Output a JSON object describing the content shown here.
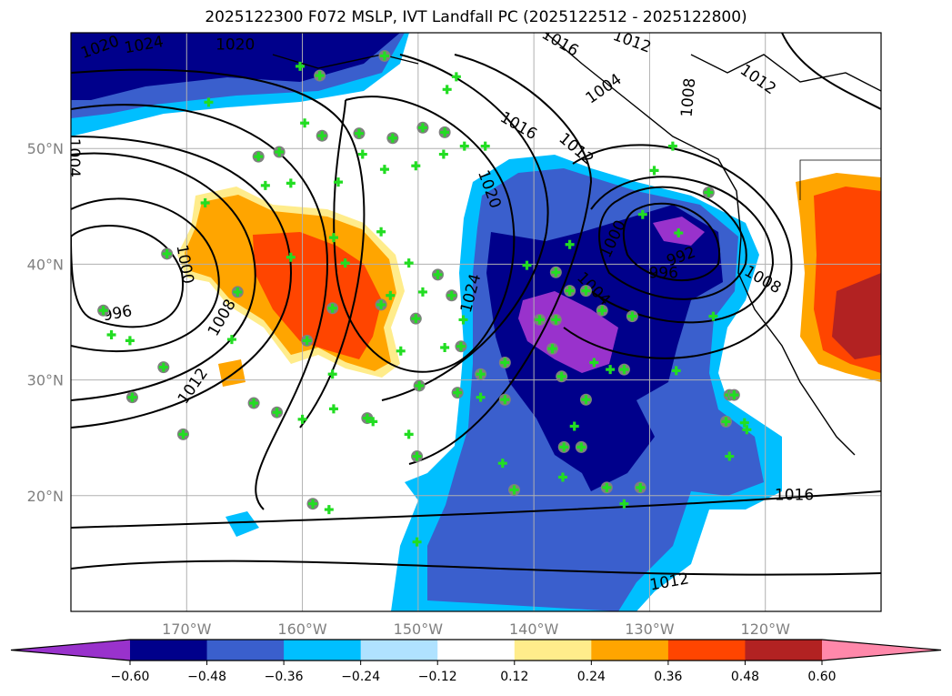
{
  "title": "2025122300 F072 MSLP, IVT Landfall PC (2025122512 - 2025122800)",
  "map": {
    "lon_range": [
      -180,
      -110
    ],
    "lat_range": [
      10,
      60
    ],
    "lon_ticks": [
      {
        "v": -170,
        "label": "170°W"
      },
      {
        "v": -160,
        "label": "160°W"
      },
      {
        "v": -150,
        "label": "150°W"
      },
      {
        "v": -140,
        "label": "140°W"
      },
      {
        "v": -130,
        "label": "130°W"
      },
      {
        "v": -120,
        "label": "120°W"
      }
    ],
    "lat_ticks": [
      {
        "v": 50,
        "label": "50°N"
      },
      {
        "v": 40,
        "label": "40°N"
      },
      {
        "v": 30,
        "label": "30°N"
      },
      {
        "v": 20,
        "label": "20°N"
      }
    ],
    "contour_labels": [
      {
        "t": "1020",
        "lon": -177.5,
        "lat": 58.8,
        "rot": -20
      },
      {
        "t": "1024",
        "lon": -173.7,
        "lat": 59,
        "rot": -10
      },
      {
        "t": "1020",
        "lon": -165.8,
        "lat": 59,
        "rot": 0
      },
      {
        "t": "1004",
        "lon": -179.7,
        "lat": 49.2,
        "rot": 90
      },
      {
        "t": "1000",
        "lon": -170.1,
        "lat": 40,
        "rot": 80
      },
      {
        "t": "996",
        "lon": -176,
        "lat": 35.8,
        "rot": -10
      },
      {
        "t": "1008",
        "lon": -167,
        "lat": 35.4,
        "rot": -60
      },
      {
        "t": "1012",
        "lon": -169.5,
        "lat": 29.5,
        "rot": -55
      },
      {
        "t": "1016",
        "lon": -141.3,
        "lat": 52,
        "rot": 30
      },
      {
        "t": "1012",
        "lon": -136.3,
        "lat": 50,
        "rot": 40
      },
      {
        "t": "1020",
        "lon": -143.8,
        "lat": 46.5,
        "rot": 70
      },
      {
        "t": "1024",
        "lon": -145.5,
        "lat": 37.5,
        "rot": -75
      },
      {
        "t": "1000",
        "lon": -133.2,
        "lat": 42.2,
        "rot": -65
      },
      {
        "t": "996",
        "lon": -128.8,
        "lat": 39.3,
        "rot": 0
      },
      {
        "t": "992",
        "lon": -127.3,
        "lat": 40.7,
        "rot": -20
      },
      {
        "t": "1004",
        "lon": -134.8,
        "lat": 37.9,
        "rot": 45
      },
      {
        "t": "1008",
        "lon": -120.2,
        "lat": 38.7,
        "rot": 30
      },
      {
        "t": "1008",
        "lon": -126.7,
        "lat": 54.4,
        "rot": -85
      },
      {
        "t": "1004",
        "lon": -134,
        "lat": 55.2,
        "rot": -35
      },
      {
        "t": "1016",
        "lon": -137.7,
        "lat": 59.2,
        "rot": 30
      },
      {
        "t": "1012",
        "lon": -131.5,
        "lat": 59.3,
        "rot": 20
      },
      {
        "t": "1012",
        "lon": -120.6,
        "lat": 56,
        "rot": 35
      },
      {
        "t": "1016",
        "lon": -117.5,
        "lat": 20.1,
        "rot": 0
      },
      {
        "t": "1012",
        "lon": -128.3,
        "lat": 12.6,
        "rot": -10
      }
    ],
    "points": [
      [
        -160.2,
        57.1,
        0
      ],
      [
        -158.5,
        56.3,
        1
      ],
      [
        -152.9,
        58.0,
        1
      ],
      [
        -146.7,
        56.2,
        0
      ],
      [
        -147.5,
        55.1,
        0
      ],
      [
        -159.8,
        52.2,
        0
      ],
      [
        -163.8,
        49.3,
        1
      ],
      [
        -162,
        49.7,
        1
      ],
      [
        -158.3,
        51.1,
        1
      ],
      [
        -155.1,
        51.3,
        1
      ],
      [
        -152.2,
        50.9,
        1
      ],
      [
        -149.6,
        51.8,
        1
      ],
      [
        -147.7,
        51.4,
        1
      ],
      [
        -146,
        50.2,
        0
      ],
      [
        -144.2,
        50.2,
        0
      ],
      [
        -150.2,
        48.5,
        0
      ],
      [
        -152.9,
        48.2,
        0
      ],
      [
        -156.9,
        47.1,
        0
      ],
      [
        -163.2,
        46.8,
        0
      ],
      [
        -168.4,
        45.3,
        0
      ],
      [
        -171.7,
        40.9,
        1
      ],
      [
        -177.2,
        36,
        1
      ],
      [
        -176.5,
        33.9,
        0
      ],
      [
        -174.9,
        33.4,
        0
      ],
      [
        -172,
        31.1,
        1
      ],
      [
        -174.7,
        28.5,
        1
      ],
      [
        -170.3,
        25.3,
        1
      ],
      [
        -164.2,
        28,
        1
      ],
      [
        -162.2,
        27.2,
        1
      ],
      [
        -160,
        26.6,
        0
      ],
      [
        -159.1,
        19.3,
        1
      ],
      [
        -157.7,
        18.8,
        0
      ],
      [
        -154.4,
        26.7,
        1
      ],
      [
        -150.8,
        25.3,
        0
      ],
      [
        -150.1,
        23.4,
        1
      ],
      [
        -150.1,
        16,
        0
      ],
      [
        -149.9,
        29.5,
        1
      ],
      [
        -150.2,
        35.3,
        1
      ],
      [
        -149.6,
        37.6,
        0
      ],
      [
        -148.3,
        39.1,
        1
      ],
      [
        -147.1,
        37.3,
        1
      ],
      [
        -146.1,
        35.2,
        0
      ],
      [
        -146.3,
        32.9,
        1
      ],
      [
        -147.7,
        32.8,
        0
      ],
      [
        -146.6,
        28.9,
        1
      ],
      [
        -144.6,
        28.5,
        0
      ],
      [
        -142.5,
        31.5,
        1
      ],
      [
        -144.6,
        30.5,
        1
      ],
      [
        -142.5,
        28.3,
        1
      ],
      [
        -142.7,
        22.8,
        0
      ],
      [
        -141.7,
        20.5,
        1
      ],
      [
        -140.6,
        39.9,
        0
      ],
      [
        -138.1,
        39.3,
        1
      ],
      [
        -136.9,
        37.7,
        1
      ],
      [
        -135.5,
        37.7,
        1
      ],
      [
        -136.9,
        41.7,
        0
      ],
      [
        -134.1,
        36,
        1
      ],
      [
        -131.5,
        35.5,
        1
      ],
      [
        -138.1,
        35.2,
        1
      ],
      [
        -139.5,
        35.2,
        1
      ],
      [
        -138.4,
        32.7,
        1
      ],
      [
        -137.6,
        30.3,
        1
      ],
      [
        -134.8,
        31.5,
        0
      ],
      [
        -133.4,
        30.9,
        0
      ],
      [
        -132.2,
        30.9,
        1
      ],
      [
        -135.5,
        28.3,
        1
      ],
      [
        -136.5,
        26,
        0
      ],
      [
        -137.4,
        24.2,
        1
      ],
      [
        -135.9,
        24.2,
        1
      ],
      [
        -137.5,
        21.6,
        0
      ],
      [
        -133.7,
        20.7,
        1
      ],
      [
        -130.8,
        20.7,
        1
      ],
      [
        -132.2,
        19.3,
        0
      ],
      [
        -127.7,
        30.8,
        0
      ],
      [
        -130.6,
        44.3,
        0
      ],
      [
        -127.5,
        42.7,
        0
      ],
      [
        -124.9,
        46.2,
        1
      ],
      [
        -129.6,
        48.1,
        0
      ],
      [
        -128,
        50.2,
        0
      ],
      [
        -124.5,
        35.5,
        0
      ],
      [
        -123.1,
        28.7,
        1
      ],
      [
        -122.7,
        28.7,
        1
      ],
      [
        -123.4,
        26.4,
        1
      ],
      [
        -121.8,
        26.3,
        0
      ],
      [
        -121.6,
        25.7,
        0
      ],
      [
        -123.1,
        23.4,
        0
      ],
      [
        -157.4,
        36.2,
        1
      ],
      [
        -159.6,
        33.4,
        1
      ],
      [
        -165.6,
        37.6,
        1
      ],
      [
        -166.1,
        33.5,
        0
      ],
      [
        -161,
        40.6,
        0
      ],
      [
        -156.3,
        40.1,
        0
      ],
      [
        -157.3,
        42.3,
        0
      ],
      [
        -150.8,
        40.1,
        0
      ],
      [
        -153.2,
        42.8,
        0
      ],
      [
        -152.4,
        37.3,
        0
      ],
      [
        -153.2,
        36.5,
        1
      ],
      [
        -151.5,
        32.5,
        0
      ],
      [
        -157.4,
        30.5,
        0
      ],
      [
        -157.3,
        27.5,
        0
      ],
      [
        -153.9,
        26.4,
        0
      ],
      [
        -147.8,
        49.5,
        0
      ],
      [
        -154.8,
        49.5,
        0
      ],
      [
        -161,
        47,
        0
      ],
      [
        -168.1,
        54,
        0
      ]
    ]
  },
  "colorbar": {
    "colors": [
      "#9932CC",
      "#00008B",
      "#3A5FCD",
      "#00BFFF",
      "#B0E2FF",
      "#FFFFFF",
      "#FFEC8B",
      "#FFA500",
      "#FF4500",
      "#B22222",
      "#FF88AA"
    ],
    "labels": [
      "−0.60",
      "−0.48",
      "−0.36",
      "−0.24",
      "−0.12",
      "0.12",
      "0.24",
      "0.36",
      "0.48",
      "0.60"
    ]
  },
  "colors": {
    "plus": "#22DD22",
    "circle": "#808080",
    "grid": "#B0B0B0"
  }
}
